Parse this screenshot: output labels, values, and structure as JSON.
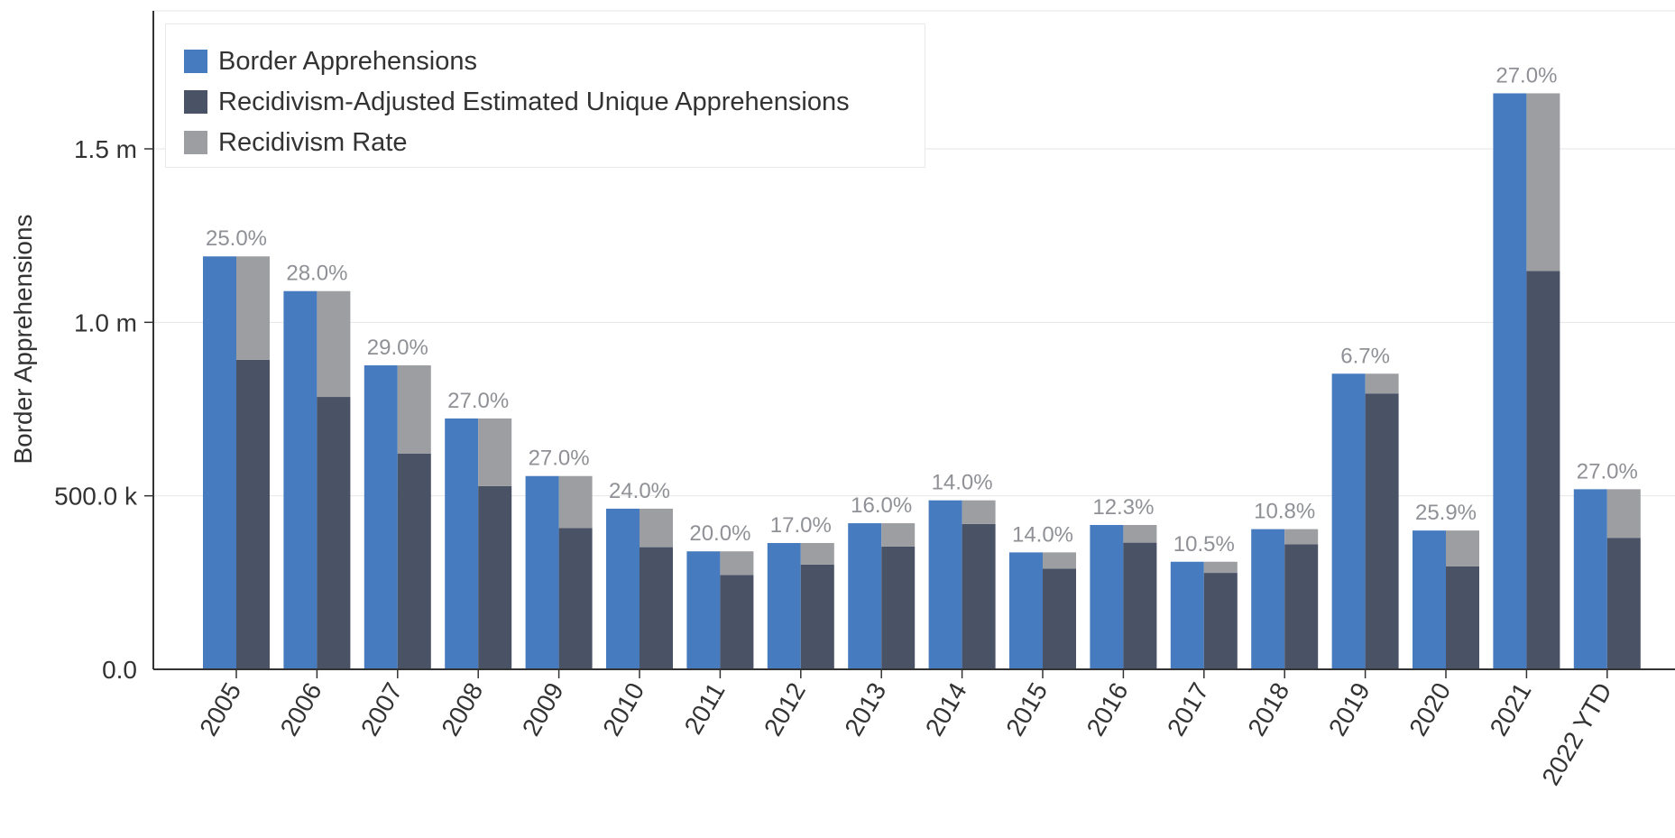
{
  "chart_data": {
    "type": "bar",
    "ylabel": "Border Apprehensions",
    "ylim": [
      0,
      1850000
    ],
    "yticks": [
      {
        "value": 0,
        "label": "0.0"
      },
      {
        "value": 500000,
        "label": "500.0 k"
      },
      {
        "value": 1000000,
        "label": "1.0 m"
      },
      {
        "value": 1500000,
        "label": "1.5 m"
      }
    ],
    "grid": true,
    "legend_position": "top-left",
    "categories": [
      "2005",
      "2006",
      "2007",
      "2008",
      "2009",
      "2010",
      "2011",
      "2012",
      "2013",
      "2014",
      "2015",
      "2016",
      "2017",
      "2018",
      "2019",
      "2020",
      "2021",
      "2022 YTD"
    ],
    "series": [
      {
        "name": "Border Apprehensions",
        "color": "#467cbf",
        "values": [
          1190000,
          1090000,
          876000,
          723000,
          557000,
          463000,
          340000,
          364000,
          421000,
          487000,
          337000,
          416000,
          310000,
          404000,
          852000,
          400000,
          1660000,
          519000
        ]
      },
      {
        "name": "Recidivism-Adjusted Estimated Unique Apprehensions",
        "color": "#4a5266",
        "values": [
          892000,
          785000,
          622000,
          528000,
          407000,
          352000,
          272000,
          302000,
          354000,
          419000,
          290000,
          365000,
          278000,
          360000,
          795000,
          297000,
          1148000,
          379000
        ]
      },
      {
        "name": "Recidivism Rate",
        "color": "#9c9ea2",
        "values": [
          25.0,
          28.0,
          29.0,
          27.0,
          27.0,
          24.0,
          20.0,
          17.0,
          16.0,
          14.0,
          14.0,
          12.3,
          10.5,
          10.8,
          6.7,
          25.9,
          27.0,
          27.0
        ],
        "labels": [
          "25.0%",
          "28.0%",
          "29.0%",
          "27.0%",
          "27.0%",
          "24.0%",
          "20.0%",
          "17.0%",
          "16.0%",
          "14.0%",
          "14.0%",
          "12.3%",
          "10.5%",
          "10.8%",
          "6.7%",
          "25.9%",
          "27.0%",
          "27.0%"
        ]
      }
    ]
  }
}
